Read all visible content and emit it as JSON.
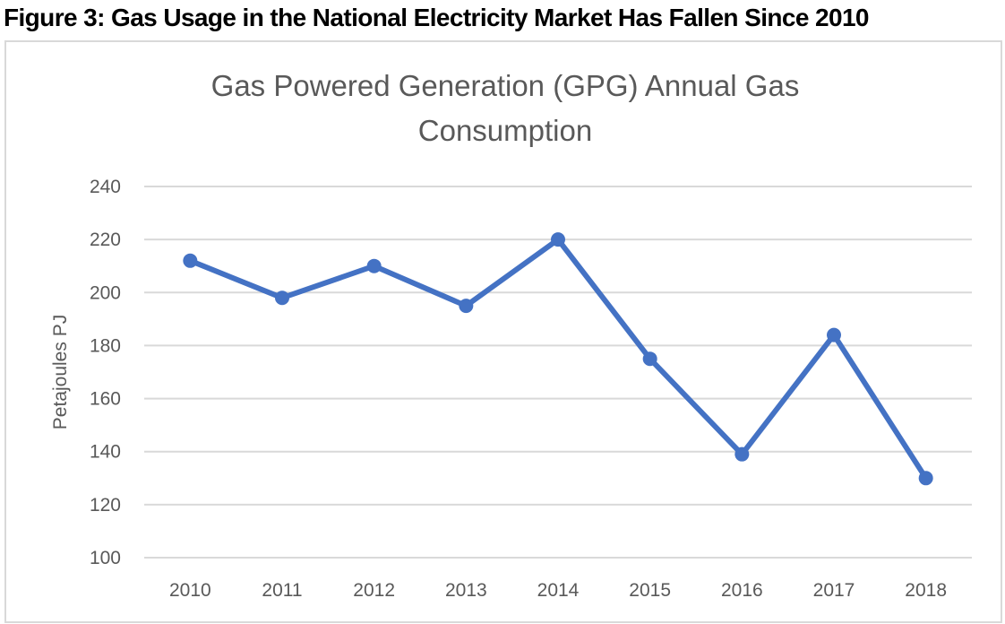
{
  "caption": "Figure 3: Gas Usage in the National Electricity Market Has Fallen Since 2010",
  "chart_data": {
    "type": "line",
    "title_lines": [
      "Gas Powered Generation (GPG) Annual Gas",
      "Consumption"
    ],
    "xlabel": "",
    "ylabel": "Petajoules PJ",
    "categories": [
      "2010",
      "2011",
      "2012",
      "2013",
      "2014",
      "2015",
      "2016",
      "2017",
      "2018"
    ],
    "series": [
      {
        "name": "GPG Annual Gas Consumption",
        "color": "#4472c4",
        "values": [
          212,
          198,
          210,
          195,
          220,
          175,
          139,
          184,
          130
        ]
      }
    ],
    "ylim": [
      100,
      240
    ],
    "yticks": [
      100,
      120,
      140,
      160,
      180,
      200,
      220,
      240
    ],
    "ytick_labels": [
      "100",
      "120",
      "140",
      "160",
      "180",
      "200",
      "220",
      "240"
    ],
    "grid": true,
    "legend": "none",
    "gridline_color": "#d9d9d9"
  }
}
